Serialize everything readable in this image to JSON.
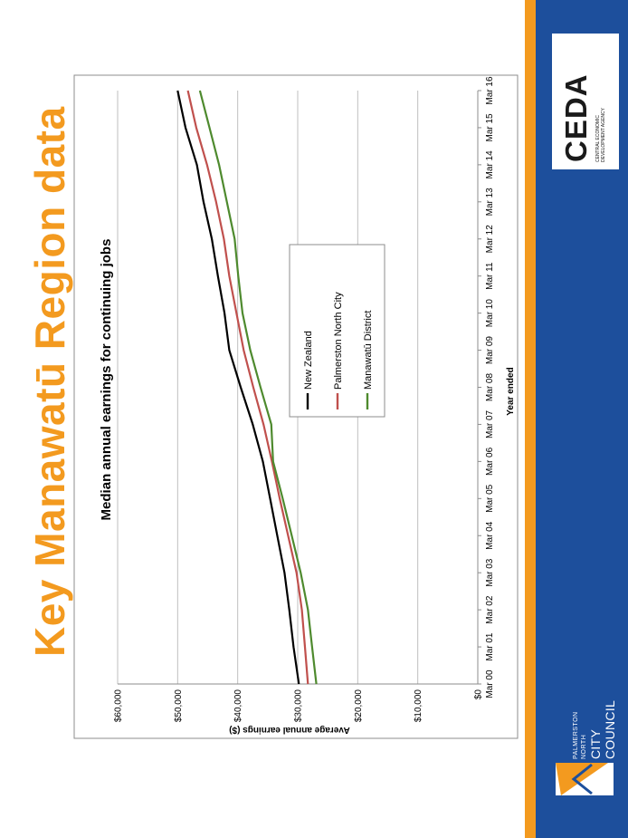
{
  "page": {
    "title": "Key Manawatū Region data"
  },
  "branding": {
    "ceda_logo_text": "CEDA",
    "ceda_sub_text": "CENTRAL ECONOMIC DEVELOPMENT AGENCY",
    "council_line1": "PALMERSTON NORTH",
    "council_line2": "CITY COUNCIL",
    "accent_orange": "#f39a1f",
    "brand_blue": "#1d4f9c"
  },
  "chart_data": {
    "type": "line",
    "title": "Median annual earnings for continuing jobs",
    "xlabel": "Year ended",
    "ylabel": "Average annual earnings ($)",
    "ylim": [
      0,
      60000
    ],
    "yticks": [
      "$0",
      "$10,000",
      "$20,000",
      "$30,000",
      "$40,000",
      "$50,000",
      "$60,000"
    ],
    "categories": [
      "Mar 00",
      "Mar 01",
      "Mar 02",
      "Mar 03",
      "Mar 04",
      "Mar 05",
      "Mar 06",
      "Mar 07",
      "Mar 08",
      "Mar 09",
      "Mar 10",
      "Mar 11",
      "Mar 12",
      "Mar 13",
      "Mar 14",
      "Mar 15",
      "Mar 16"
    ],
    "grid": true,
    "legend_placement": "center-right",
    "series": [
      {
        "name": "New Zealand",
        "color": "#000000",
        "values": [
          29800,
          30700,
          31400,
          32200,
          33400,
          34600,
          35800,
          37500,
          39500,
          41400,
          42200,
          43300,
          44300,
          45700,
          46800,
          48700,
          50000
        ]
      },
      {
        "name": "Palmerston North City",
        "color": "#c0504d",
        "values": [
          28300,
          28800,
          29300,
          30200,
          31600,
          33000,
          34300,
          35700,
          37400,
          39000,
          40200,
          41400,
          42300,
          43600,
          45100,
          46900,
          48300
        ]
      },
      {
        "name": "Manawatū District",
        "color": "#4e8a2e",
        "values": [
          26900,
          27600,
          28300,
          29500,
          31000,
          32500,
          34100,
          34400,
          36200,
          37900,
          39200,
          39900,
          40500,
          41800,
          43100,
          44700,
          46300
        ]
      }
    ]
  }
}
